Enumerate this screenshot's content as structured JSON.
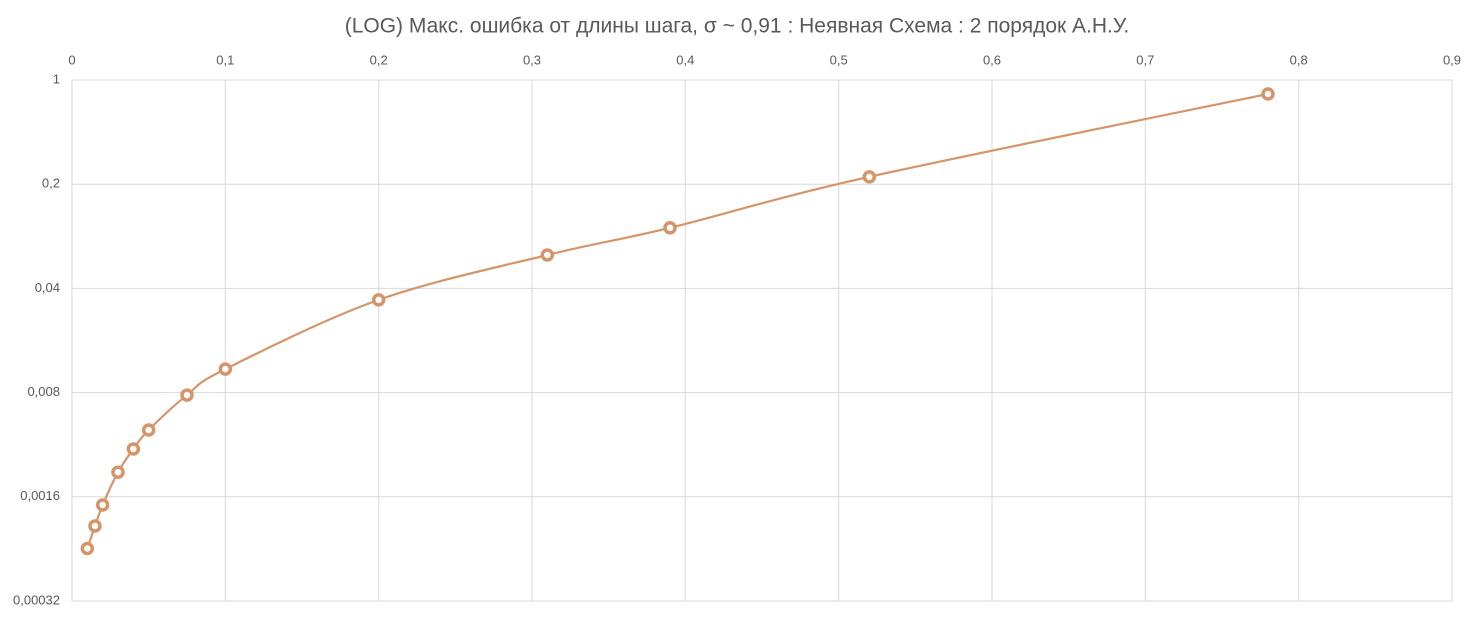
{
  "chart_data": {
    "type": "scatter",
    "title": "(LOG) Макс. ошибка от длины шага, σ ~ 0,91 : Неявная Схема : 2 порядок А.Н.У.",
    "yscale": "log",
    "grid": true,
    "smooth": true,
    "xlim": [
      0,
      0.9
    ],
    "xticks": [
      0,
      {
        "value": 0.1,
        "label": "0,1"
      },
      {
        "value": 0.2,
        "label": "0,2"
      },
      {
        "value": 0.3,
        "label": "0,3"
      },
      {
        "value": 0.4,
        "label": "0,4"
      },
      {
        "value": 0.5,
        "label": "0,5"
      },
      {
        "value": 0.6,
        "label": "0,6"
      },
      {
        "value": 0.7,
        "label": "0,7"
      },
      {
        "value": 0.8,
        "label": "0,8"
      },
      {
        "value": 0.9,
        "label": "0,9"
      }
    ],
    "ylim": [
      0.00032,
      1
    ],
    "yticks": [
      {
        "value": 0.00032,
        "label": "0,00032"
      },
      {
        "value": 0.0016,
        "label": "0,0016"
      },
      {
        "value": 0.008,
        "label": "0,008"
      },
      {
        "value": 0.04,
        "label": "0,04"
      },
      {
        "value": 0.2,
        "label": "0,2"
      },
      1
    ],
    "series": [
      {
        "color": "#d4956a",
        "x": [
          0.01,
          0.015,
          0.02,
          0.03,
          0.04,
          0.05,
          0.075,
          0.1,
          0.2,
          0.31,
          0.39,
          0.52,
          0.78
        ],
        "values": [
          0.00072,
          0.00102,
          0.00141,
          0.00234,
          0.00335,
          0.00449,
          0.0077,
          0.0115,
          0.0335,
          0.067,
          0.102,
          0.224,
          0.806
        ]
      }
    ]
  }
}
